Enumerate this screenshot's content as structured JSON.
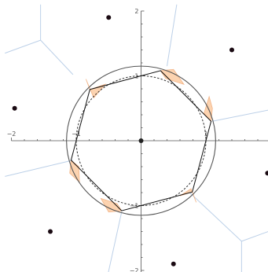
{
  "diagram": {
    "xlim": [
      -2,
      2
    ],
    "ylim": [
      -2,
      2
    ],
    "axes": {
      "x_ticks": [
        {
          "value": -2,
          "label": "−2"
        },
        {
          "value": -1,
          "label": "−1"
        },
        {
          "value": 1,
          "label": "1"
        }
      ],
      "y_ticks": [
        {
          "value": 2,
          "label": "2"
        },
        {
          "value": 1,
          "label": "1"
        },
        {
          "value": -1,
          "label": "−1"
        },
        {
          "value": -2,
          "label": "−2"
        }
      ],
      "minor_x": [
        -1.8,
        -1.6,
        -1.4,
        -1.2,
        -0.8,
        -0.6,
        -0.4,
        -0.2,
        0.2,
        0.4,
        0.6,
        0.8,
        1.2,
        1.4,
        1.6,
        1.8
      ],
      "minor_y": [
        1.8,
        1.6,
        1.4,
        1.2,
        0.8,
        0.6,
        0.4,
        0.2,
        -0.2,
        -0.4,
        -0.6,
        -0.8,
        -1.2,
        -1.4,
        -1.6,
        -1.8
      ]
    },
    "outer_circle_radius": 1.15,
    "inner_circle_radius": 1.0,
    "origin": [
      0,
      0
    ],
    "sites": [
      [
        -0.5,
        1.9
      ],
      [
        1.4,
        1.4
      ],
      [
        -1.95,
        0.5
      ],
      [
        1.95,
        -0.5
      ],
      [
        -1.4,
        -1.4
      ],
      [
        0.5,
        -1.9
      ]
    ],
    "polygon": [
      [
        0.3,
        1.08
      ],
      [
        1.08,
        0.3
      ],
      [
        0.79,
        -0.79
      ],
      [
        -0.3,
        -1.08
      ],
      [
        -1.08,
        -0.3
      ],
      [
        -0.79,
        0.79
      ]
    ],
    "regions": [
      [
        [
          0.3,
          1.08
        ],
        [
          0.5,
          1.1
        ],
        [
          0.66,
          0.87
        ],
        [
          0.38,
          0.96
        ]
      ],
      [
        [
          1.08,
          0.3
        ],
        [
          1.1,
          0.5
        ],
        [
          1.05,
          0.68
        ],
        [
          0.97,
          0.42
        ]
      ],
      [
        [
          0.79,
          -0.79
        ],
        [
          0.85,
          -0.95
        ],
        [
          0.77,
          -0.74
        ],
        [
          0.6,
          -0.85
        ]
      ],
      [
        [
          -0.3,
          -1.08
        ],
        [
          -0.5,
          -1.1
        ],
        [
          -0.62,
          -0.89
        ],
        [
          -0.37,
          -0.97
        ]
      ],
      [
        [
          -1.08,
          -0.3
        ],
        [
          -1.1,
          -0.5
        ],
        [
          -0.95,
          -0.64
        ],
        [
          -0.96,
          -0.4
        ]
      ],
      [
        [
          -0.79,
          0.79
        ],
        [
          -0.85,
          0.95
        ],
        [
          -0.73,
          0.66
        ],
        [
          -0.55,
          0.87
        ]
      ]
    ],
    "voronoi_edges": [
      [
        [
          -1.05,
          1.02
        ],
        [
          -1.55,
          1.55
        ]
      ],
      [
        [
          -1.55,
          1.55
        ],
        [
          -2.1,
          1.35
        ]
      ],
      [
        [
          -1.55,
          1.55
        ],
        [
          -1.55,
          2.1
        ]
      ],
      [
        [
          0.4,
          1.15
        ],
        [
          0.55,
          2.1
        ]
      ],
      [
        [
          1.1,
          0.3
        ],
        [
          2.1,
          0.5
        ]
      ],
      [
        [
          0.75,
          -0.8
        ],
        [
          1.55,
          -1.55
        ]
      ],
      [
        [
          1.55,
          -1.55
        ],
        [
          1.55,
          -2.1
        ]
      ],
      [
        [
          1.55,
          -1.55
        ],
        [
          2.1,
          -1.35
        ]
      ],
      [
        [
          -0.3,
          -1.1
        ],
        [
          -0.52,
          -2.1
        ]
      ],
      [
        [
          -1.05,
          -0.3
        ],
        [
          -2.1,
          -0.55
        ]
      ]
    ]
  }
}
